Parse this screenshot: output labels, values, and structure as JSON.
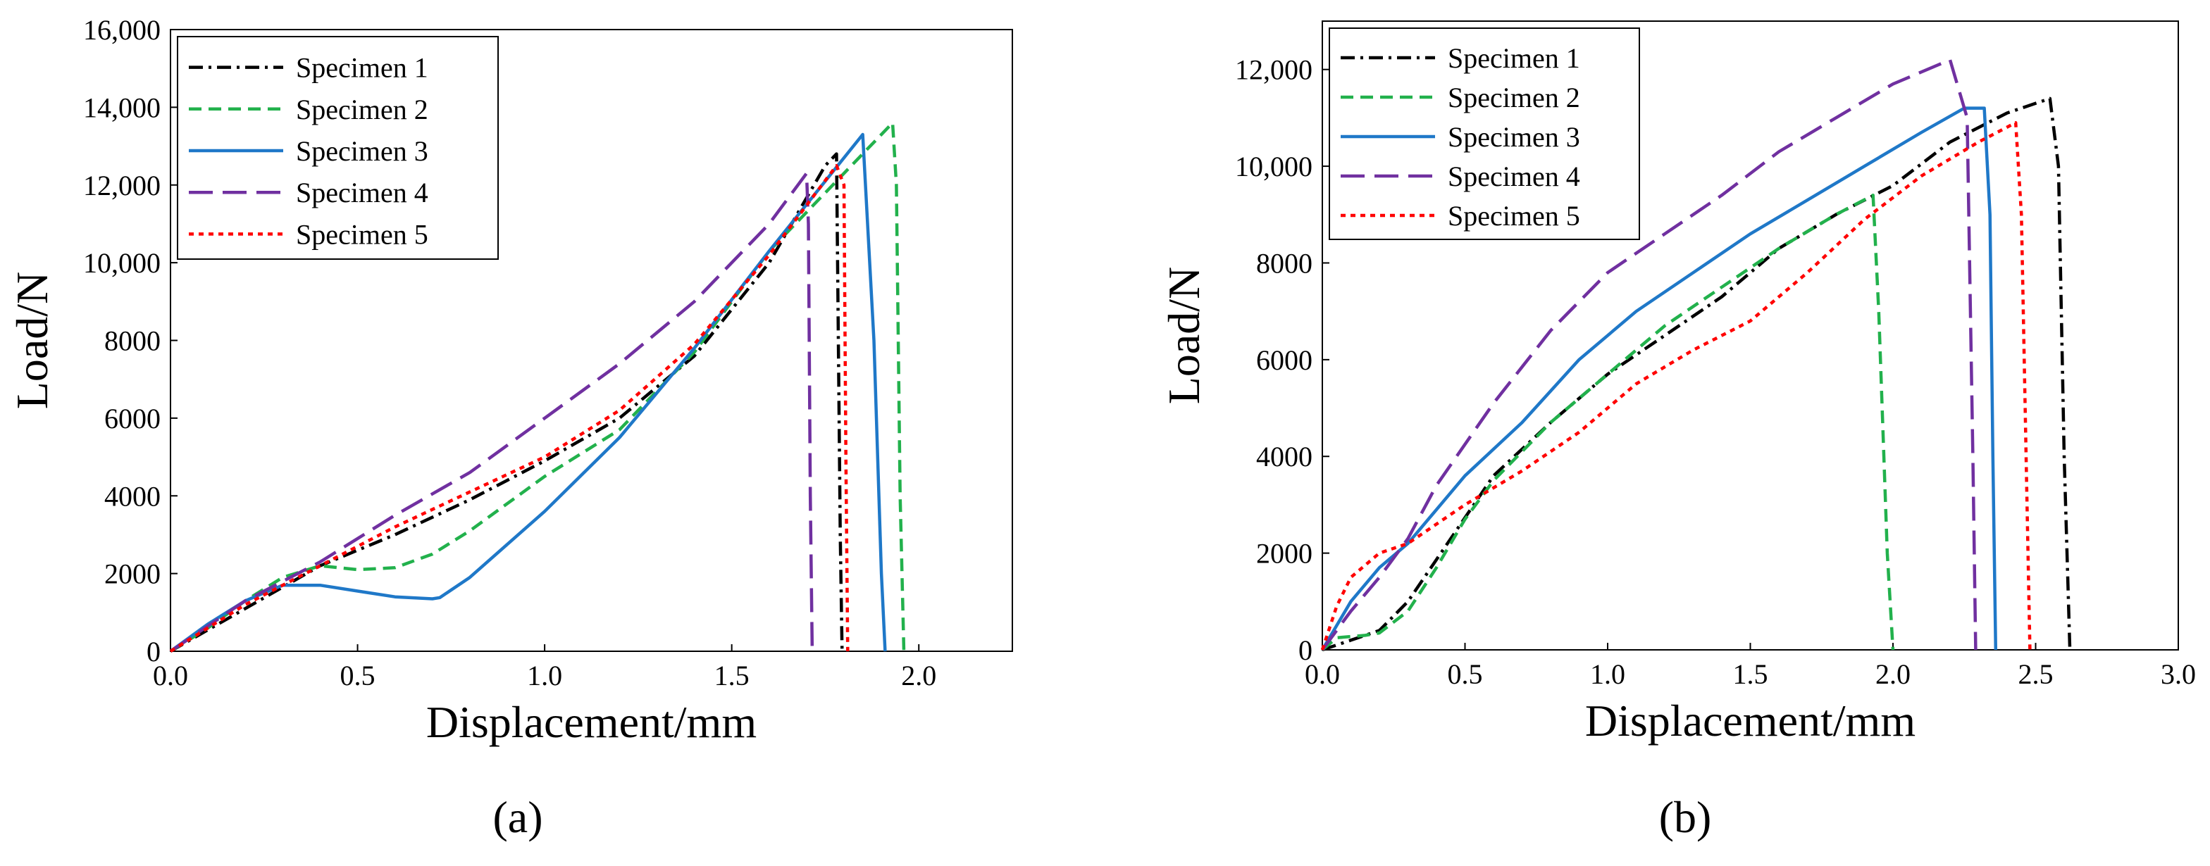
{
  "figure": {
    "panels": [
      {
        "label": "(a)"
      },
      {
        "label": "(b)"
      }
    ]
  },
  "colors": {
    "specimen_1": "#000000",
    "specimen_2": "#22b14c",
    "specimen_3": "#1f78c8",
    "specimen_4": "#7030a0",
    "specimen_5": "#ff0000"
  },
  "chart_data": [
    {
      "type": "line",
      "panel": "(a)",
      "xlabel": "Displacement/mm",
      "ylabel": "Load/N",
      "xlim": [
        0,
        2.25
      ],
      "ylim": [
        0,
        16000
      ],
      "xticks": [
        0,
        0.5,
        1.0,
        1.5,
        2.0
      ],
      "xtick_labels": [
        "0.0",
        "0.5",
        "1.0",
        "1.5",
        "2.0"
      ],
      "yticks": [
        0,
        2000,
        4000,
        6000,
        8000,
        10000,
        12000,
        14000,
        16000
      ],
      "ytick_labels": [
        "0",
        "2000",
        "4000",
        "6000",
        "8000",
        "10,000",
        "12,000",
        "14,000",
        "16,000"
      ],
      "legend_position": "top-left",
      "series": [
        {
          "name": "Specimen 1",
          "style": "dashdot",
          "color": "#000000",
          "x": [
            0,
            0.2,
            0.4,
            0.6,
            0.8,
            1.0,
            1.2,
            1.4,
            1.6,
            1.75,
            1.78,
            1.785,
            1.79,
            1.795
          ],
          "y": [
            0,
            1100,
            2200,
            3000,
            3900,
            4900,
            6000,
            7600,
            10000,
            12500,
            12800,
            8000,
            3000,
            0
          ]
        },
        {
          "name": "Specimen 2",
          "style": "dashed",
          "color": "#22b14c",
          "x": [
            0,
            0.1,
            0.2,
            0.3,
            0.4,
            0.5,
            0.6,
            0.7,
            0.8,
            1.0,
            1.2,
            1.4,
            1.6,
            1.8,
            1.93,
            1.94,
            1.95,
            1.96
          ],
          "y": [
            0,
            600,
            1300,
            1900,
            2200,
            2100,
            2150,
            2500,
            3100,
            4500,
            5700,
            7700,
            10300,
            12300,
            13600,
            12000,
            4000,
            0
          ]
        },
        {
          "name": "Specimen 3",
          "style": "solid",
          "color": "#1f78c8",
          "x": [
            0,
            0.1,
            0.2,
            0.3,
            0.4,
            0.5,
            0.6,
            0.7,
            0.72,
            0.8,
            1.0,
            1.2,
            1.4,
            1.6,
            1.7,
            1.85,
            1.88,
            1.9,
            1.91
          ],
          "y": [
            0,
            700,
            1300,
            1700,
            1700,
            1550,
            1400,
            1350,
            1380,
            1900,
            3600,
            5500,
            7800,
            10300,
            11500,
            13300,
            8000,
            2000,
            0
          ]
        },
        {
          "name": "Specimen 4",
          "style": "longdash",
          "color": "#7030a0",
          "x": [
            0,
            0.2,
            0.4,
            0.6,
            0.8,
            1.0,
            1.2,
            1.4,
            1.6,
            1.7,
            1.705,
            1.71,
            1.715
          ],
          "y": [
            0,
            1300,
            2300,
            3500,
            4600,
            6000,
            7400,
            9000,
            11000,
            12300,
            11000,
            4000,
            0
          ]
        },
        {
          "name": "Specimen 5",
          "style": "dotted",
          "color": "#ff0000",
          "x": [
            0,
            0.2,
            0.4,
            0.6,
            0.8,
            1.0,
            1.2,
            1.4,
            1.6,
            1.78,
            1.8,
            1.805,
            1.81
          ],
          "y": [
            0,
            1200,
            2200,
            3200,
            4100,
            5000,
            6200,
            7900,
            10200,
            12500,
            12000,
            5000,
            0
          ]
        }
      ]
    },
    {
      "type": "line",
      "panel": "(b)",
      "xlabel": "Displacement/mm",
      "ylabel": "Load/N",
      "xlim": [
        0,
        3.0
      ],
      "ylim": [
        0,
        13000
      ],
      "xticks": [
        0,
        0.5,
        1.0,
        1.5,
        2.0,
        2.5,
        3.0
      ],
      "xtick_labels": [
        "0.0",
        "0.5",
        "1.0",
        "1.5",
        "2.0",
        "2.5",
        "3.0"
      ],
      "yticks": [
        0,
        2000,
        4000,
        6000,
        8000,
        10000,
        12000
      ],
      "ytick_labels": [
        "0",
        "2000",
        "4000",
        "6000",
        "8000",
        "10,000",
        "12,000"
      ],
      "legend_position": "top-left",
      "series": [
        {
          "name": "Specimen 1",
          "style": "dashdot",
          "color": "#000000",
          "x": [
            0,
            0.1,
            0.2,
            0.3,
            0.45,
            0.6,
            0.8,
            1.0,
            1.2,
            1.4,
            1.6,
            1.8,
            2.0,
            2.2,
            2.4,
            2.55,
            2.58,
            2.6,
            2.62
          ],
          "y": [
            0,
            200,
            400,
            1000,
            2300,
            3600,
            4700,
            5700,
            6500,
            7300,
            8300,
            9000,
            9600,
            10500,
            11100,
            11400,
            10000,
            4000,
            0
          ]
        },
        {
          "name": "Specimen 2",
          "style": "dashed",
          "color": "#22b14c",
          "x": [
            0,
            0.05,
            0.15,
            0.2,
            0.3,
            0.4,
            0.5,
            0.6,
            0.8,
            1.0,
            1.2,
            1.4,
            1.6,
            1.8,
            1.93,
            1.95,
            1.98,
            2.0
          ],
          "y": [
            0,
            250,
            300,
            350,
            800,
            1700,
            2700,
            3500,
            4700,
            5700,
            6700,
            7500,
            8300,
            9000,
            9400,
            7000,
            2000,
            0
          ]
        },
        {
          "name": "Specimen 3",
          "style": "solid",
          "color": "#1f78c8",
          "x": [
            0,
            0.1,
            0.2,
            0.3,
            0.4,
            0.5,
            0.7,
            0.9,
            1.1,
            1.3,
            1.5,
            1.7,
            1.9,
            2.1,
            2.25,
            2.32,
            2.34,
            2.35,
            2.36
          ],
          "y": [
            0,
            1000,
            1700,
            2200,
            2900,
            3600,
            4700,
            6000,
            7000,
            7800,
            8600,
            9300,
            10000,
            10700,
            11200,
            11200,
            9000,
            4000,
            0
          ]
        },
        {
          "name": "Specimen 4",
          "style": "longdash",
          "color": "#7030a0",
          "x": [
            0,
            0.1,
            0.2,
            0.3,
            0.4,
            0.6,
            0.8,
            1.0,
            1.2,
            1.4,
            1.6,
            1.8,
            2.0,
            2.2,
            2.26,
            2.28,
            2.29
          ],
          "y": [
            0,
            800,
            1500,
            2300,
            3400,
            5100,
            6600,
            7800,
            8600,
            9400,
            10300,
            11000,
            11700,
            12200,
            11000,
            4000,
            0
          ]
        },
        {
          "name": "Specimen 5",
          "style": "dotted",
          "color": "#ff0000",
          "x": [
            0,
            0.05,
            0.1,
            0.2,
            0.3,
            0.5,
            0.7,
            0.9,
            1.1,
            1.3,
            1.5,
            1.7,
            1.9,
            2.1,
            2.3,
            2.43,
            2.45,
            2.47,
            2.48
          ],
          "y": [
            0,
            900,
            1500,
            2000,
            2200,
            3000,
            3700,
            4500,
            5500,
            6200,
            6800,
            7800,
            8900,
            9800,
            10500,
            10900,
            9000,
            3000,
            0
          ]
        }
      ]
    }
  ]
}
